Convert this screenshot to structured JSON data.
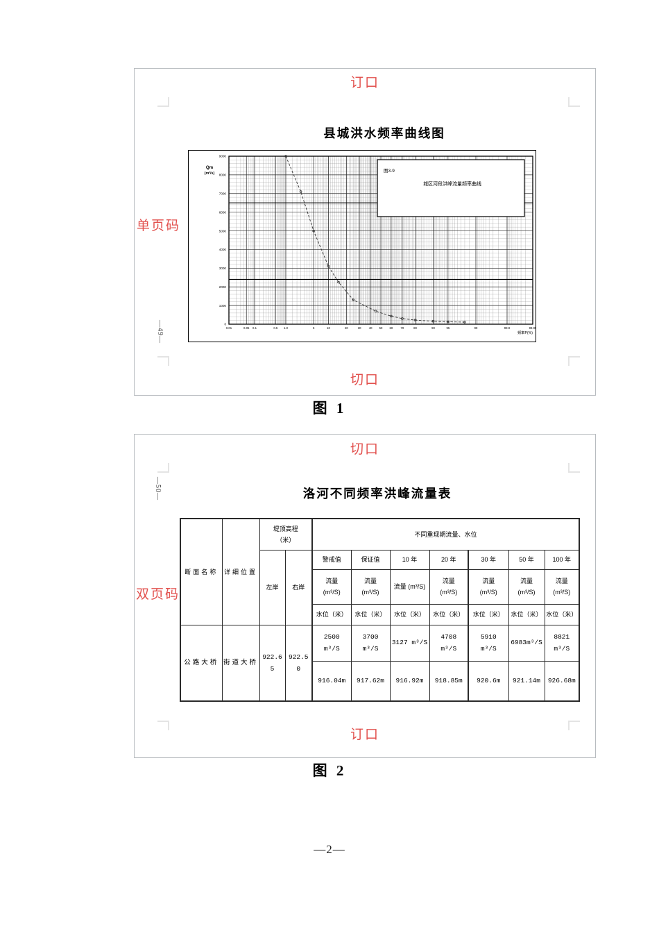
{
  "annotations": {
    "color": "#e2514e",
    "page1_top": "订口",
    "page1_left": "单页码",
    "page1_bottom": "切口",
    "page1_page_number": "—49—",
    "page2_top": "切口",
    "page2_left": "双页码",
    "page2_bottom": "订口",
    "page2_page_number": "—50—"
  },
  "captions": {
    "figure1": "图 1",
    "figure2": "图 2",
    "document_page_number": "—2—"
  },
  "chart_data": {
    "type": "line",
    "title": "县城洪水频率曲线图",
    "figure_label": "图3-9",
    "inner_title": "城区河段洪峰流量频率曲线",
    "ylabel_line1": "Qm",
    "ylabel_line2": "(m³/s)",
    "xlabel": "频率P(%)",
    "x_scale": "normal-probability-percent",
    "x_tick_values": [
      0.01,
      0.05,
      0.1,
      0.5,
      1.0,
      5,
      10,
      20,
      30,
      40,
      50,
      60,
      70,
      80,
      90,
      95,
      99,
      99.9,
      99.99
    ],
    "x_tick_labels": [
      "0.01",
      "0.05",
      "0.1",
      "0.5",
      "1.0",
      "5",
      "10",
      "20",
      "30",
      "40",
      "50",
      "60",
      "70",
      "80",
      "90",
      "95",
      "99",
      "99.9",
      "99.99"
    ],
    "xlim": [
      0.01,
      99.99
    ],
    "ylim": [
      0,
      9000
    ],
    "y_major_step": 1000,
    "y_minor_step": 200,
    "grid": true,
    "grid_minor_ranges": [
      [
        0.01,
        0.1,
        0.01
      ],
      [
        0.1,
        1,
        0.05
      ],
      [
        1,
        10,
        0.5
      ],
      [
        10,
        90,
        1
      ],
      [
        90,
        99,
        0.5
      ],
      [
        99,
        99.9,
        0.1
      ],
      [
        99.9,
        99.99,
        0.01
      ]
    ],
    "emphasis_y_lines": [
      6500,
      2400
    ],
    "legend_position": "top-right",
    "series": [
      {
        "name": "城区河段洪峰流量频率曲线",
        "line_style": "dashed",
        "marker": "circle",
        "points": [
          [
            1,
            9000
          ],
          [
            2.5,
            7100
          ],
          [
            5,
            5000
          ],
          [
            10,
            3100
          ],
          [
            15,
            2250
          ],
          [
            25,
            1300
          ],
          [
            45,
            700
          ],
          [
            60,
            430
          ],
          [
            70,
            300
          ],
          [
            80,
            220
          ],
          [
            90,
            160
          ],
          [
            95,
            130
          ],
          [
            98,
            110
          ]
        ]
      }
    ]
  },
  "page2": {
    "title": "洛河不同频率洪峰流量表",
    "table": {
      "header": {
        "section_name": "断面名称",
        "detail_location": "详细位置",
        "crest_elevation": "堤顶高程\n（米）",
        "left_bank": "左岸",
        "right_bank": "右岸",
        "group": "不同重现期流量、水位",
        "period_columns": [
          "警戒值",
          "保证值",
          "10 年",
          "20 年",
          "30 年",
          "50 年",
          "100 年"
        ],
        "flow_labels": [
          "流量\n(m³/S)",
          "流量\n(m³/S)",
          "流量 (m³/S)",
          "流量\n(m³/S)",
          "流量\n(m³/S)",
          "流量\n(m³/S)",
          "流量\n(m³/S)"
        ],
        "level_label": "水位（米）"
      },
      "row": {
        "section_name": "公路大桥",
        "detail_location": "街道大桥",
        "left_bank_elevation": "922.6\n5",
        "right_bank_elevation": "922.5\n0",
        "flows": [
          "2500\nm³/S",
          "3700\nm³/S",
          "3127 m³/S",
          "4708\nm³/S",
          "5910\nm³/S",
          "6983m³/S",
          "8821\nm³/S"
        ],
        "levels": [
          "916.04m",
          "917.62m",
          "916.92m",
          "918.85m",
          "920.6m",
          "921.14m",
          "926.68m"
        ]
      }
    }
  }
}
